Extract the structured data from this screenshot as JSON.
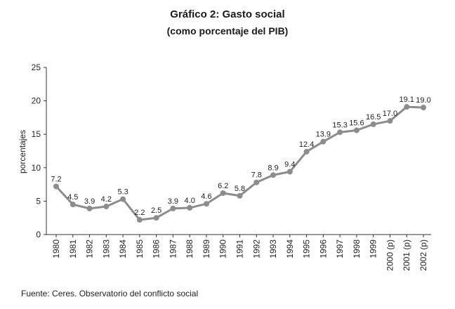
{
  "chart_data": {
    "type": "line",
    "title": "Gráfico 2: Gasto social",
    "subtitle": "(como porcentaje del PIB)",
    "ylabel": "porcentajes",
    "xlabel": "",
    "ylim": [
      0,
      25
    ],
    "yticks": [
      "0",
      "5",
      "10",
      "15",
      "20",
      "25"
    ],
    "categories": [
      "1980",
      "1981",
      "1982",
      "1983",
      "1984",
      "1985",
      "1986",
      "1987",
      "1988",
      "1989",
      "1990",
      "1991",
      "1992",
      "1993",
      "1994",
      "1995",
      "1996",
      "1997",
      "1998",
      "1999",
      "2000 (p)",
      "2001 (p)",
      "2002 (p)"
    ],
    "values": [
      7.2,
      4.5,
      3.9,
      4.2,
      5.3,
      2.2,
      2.5,
      3.9,
      4.0,
      4.6,
      6.2,
      5.8,
      7.8,
      8.9,
      9.4,
      12.4,
      13.9,
      15.3,
      15.6,
      16.5,
      17.0,
      19.1,
      19.0
    ],
    "value_labels": [
      "7.2",
      "4.5",
      "3.9",
      "4.2",
      "5.3",
      "2.2",
      "2.5",
      "3.9",
      "4.0",
      "4.6",
      "6.2",
      "5.8",
      "7.8",
      "8.9",
      "9.4",
      "12.4",
      "13.9",
      "15.3",
      "15.6",
      "16.5",
      "17.0",
      "19.1",
      "19.0"
    ],
    "grid": false,
    "legend": "none",
    "line_color": "#8c8c8c",
    "marker_color": "#8c8c8c"
  },
  "source_note": "Fuente: Ceres. Observatorio del conflicto social"
}
